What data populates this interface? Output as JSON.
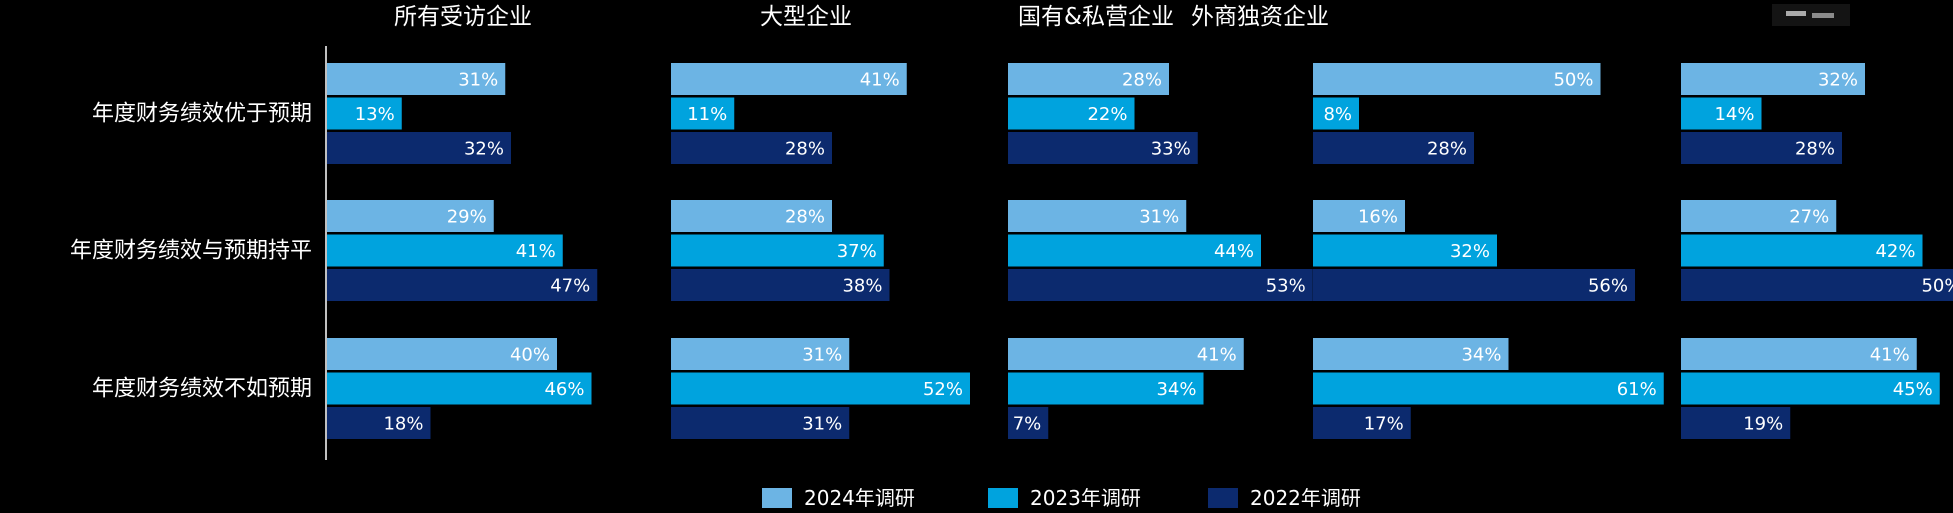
{
  "chart_data": {
    "type": "bar",
    "orientation": "horizontal",
    "categories": [
      "年度财务绩效优于预期",
      "年度财务绩效与预期持平",
      "年度财务绩效不如预期"
    ],
    "legend_position": "bottom",
    "grid": false,
    "xlim": [
      0,
      100
    ],
    "value_suffix": "%",
    "series_meta": [
      {
        "name": "2024年调研",
        "color": "#6CB4E4"
      },
      {
        "name": "2023年调研",
        "color": "#00A3DE"
      },
      {
        "name": "2022年调研",
        "color": "#0C2A6E"
      }
    ],
    "panels": [
      {
        "title": "所有受访企业",
        "series": [
          {
            "name": "2024年调研",
            "values": [
              31,
              29,
              40
            ]
          },
          {
            "name": "2023年调研",
            "values": [
              13,
              41,
              46
            ]
          },
          {
            "name": "2022年调研",
            "values": [
              32,
              47,
              18
            ]
          }
        ]
      },
      {
        "title": "大型企业",
        "series": [
          {
            "name": "2024年调研",
            "values": [
              41,
              28,
              31
            ]
          },
          {
            "name": "2023年调研",
            "values": [
              11,
              37,
              52
            ]
          },
          {
            "name": "2022年调研",
            "values": [
              28,
              38,
              31
            ]
          }
        ]
      },
      {
        "title": "国有&私营企业",
        "series": [
          {
            "name": "2024年调研",
            "values": [
              28,
              31,
              41
            ]
          },
          {
            "name": "2023年调研",
            "values": [
              22,
              44,
              34
            ]
          },
          {
            "name": "2022年调研",
            "values": [
              33,
              53,
              7
            ]
          }
        ]
      },
      {
        "title": "外商独资企业",
        "series": [
          {
            "name": "2024年调研",
            "values": [
              50,
              16,
              34
            ]
          },
          {
            "name": "2023年调研",
            "values": [
              8,
              32,
              61
            ]
          },
          {
            "name": "2022年调研",
            "values": [
              28,
              56,
              17
            ]
          }
        ]
      },
      {
        "title": "",
        "series": [
          {
            "name": "2024年调研",
            "values": [
              32,
              27,
              41
            ]
          },
          {
            "name": "2023年调研",
            "values": [
              14,
              42,
              45
            ]
          },
          {
            "name": "2022年调研",
            "values": [
              28,
              50,
              19
            ]
          }
        ]
      }
    ]
  }
}
